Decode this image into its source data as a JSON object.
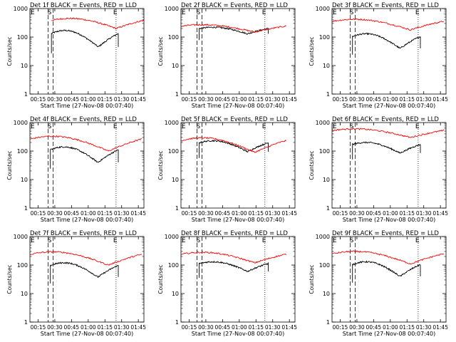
{
  "colors": {
    "events": "#000000",
    "lld": "#ff0000",
    "axis": "#000000"
  },
  "chart_data": [
    {
      "type": "line",
      "title": "Det 1f BLACK = Events, RED = LLD",
      "xlabel": "Start Time (27-Nov-08 00:07:40)",
      "ylabel": "Counts/sec",
      "yscale": "log",
      "ylim": [
        1,
        1000
      ],
      "y_ticks": [
        "1",
        "10",
        "100",
        "1000"
      ],
      "x_ticks": [
        "00:15",
        "00:30",
        "00:45",
        "01:00",
        "01:15",
        "01:30",
        "01:45"
      ],
      "markers": {
        "S": "00:26",
        "E": "01:25"
      },
      "series": [
        {
          "name": "Events",
          "color": "#000000",
          "start": "00:27",
          "end": "01:27",
          "min": 45,
          "max": 170
        },
        {
          "name": "LLD",
          "color": "#ff0000",
          "start": "00:27",
          "end": "01:50",
          "min": 200,
          "max": 450
        }
      ]
    },
    {
      "type": "line",
      "title": "Det 2f BLACK = Events, RED = LLD",
      "xlabel": "Start Time (27-Nov-08 00:07:40)",
      "ylabel": "Counts/sec",
      "yscale": "log",
      "ylim": [
        1,
        1000
      ],
      "y_ticks": [
        "1",
        "10",
        "100",
        "1000"
      ],
      "x_ticks": [
        "00:15",
        "00:30",
        "00:45",
        "01:00",
        "01:15",
        "01:30",
        "01:45"
      ],
      "markers": {
        "S": "00:24",
        "E": "01:23"
      },
      "series": [
        {
          "name": "Events",
          "color": "#000000",
          "start": "00:24",
          "end": "01:26",
          "min": 130,
          "max": 220
        },
        {
          "name": "LLD",
          "color": "#ff0000",
          "start": "00:08",
          "end": "01:42",
          "min": 150,
          "max": 270
        }
      ]
    },
    {
      "type": "line",
      "title": "Det 3f BLACK = Events, RED = LLD",
      "xlabel": "Start Time (27-Nov-08 00:07:40)",
      "ylabel": "Counts/sec",
      "yscale": "log",
      "ylim": [
        1,
        1000
      ],
      "y_ticks": [
        "1",
        "10",
        "100",
        "1000"
      ],
      "x_ticks": [
        "00:15",
        "00:30",
        "00:45",
        "01:00",
        "01:15",
        "01:30",
        "01:45"
      ],
      "markers": {
        "S": "00:26",
        "E": "01:25"
      },
      "series": [
        {
          "name": "Events",
          "color": "#000000",
          "start": "00:26",
          "end": "01:27",
          "min": 40,
          "max": 130
        },
        {
          "name": "LLD",
          "color": "#ff0000",
          "start": "00:08",
          "end": "01:48",
          "min": 180,
          "max": 420
        }
      ]
    },
    {
      "type": "line",
      "title": "Det 4f BLACK = Events, RED = LLD",
      "xlabel": "Start Time (27-Nov-08 00:07:40)",
      "ylabel": "Counts/sec",
      "yscale": "log",
      "ylim": [
        1,
        1000
      ],
      "y_ticks": [
        "1",
        "10",
        "100",
        "1000"
      ],
      "x_ticks": [
        "00:15",
        "00:30",
        "00:45",
        "01:00",
        "01:15",
        "01:30",
        "01:45"
      ],
      "markers": {
        "S": "00:26",
        "E": "01:25"
      },
      "series": [
        {
          "name": "Events",
          "color": "#000000",
          "start": "00:26",
          "end": "01:27",
          "min": 40,
          "max": 140
        },
        {
          "name": "LLD",
          "color": "#ff0000",
          "start": "00:08",
          "end": "01:48",
          "min": 100,
          "max": 330
        }
      ]
    },
    {
      "type": "line",
      "title": "Det 5f BLACK = Events, RED = LLD",
      "xlabel": "Start Time (27-Nov-08 00:07:40)",
      "ylabel": "Counts/sec",
      "yscale": "log",
      "ylim": [
        1,
        1000
      ],
      "y_ticks": [
        "1",
        "10",
        "100",
        "1000"
      ],
      "x_ticks": [
        "00:15",
        "00:30",
        "00:45",
        "01:00",
        "01:15",
        "01:30",
        "01:45"
      ],
      "markers": {
        "S": "00:24",
        "E": "01:23"
      },
      "series": [
        {
          "name": "Events",
          "color": "#000000",
          "start": "00:24",
          "end": "01:26",
          "min": 95,
          "max": 230
        },
        {
          "name": "LLD",
          "color": "#ff0000",
          "start": "00:08",
          "end": "01:42",
          "min": 90,
          "max": 290
        }
      ]
    },
    {
      "type": "line",
      "title": "Det 6f BLACK = Events, RED = LLD",
      "xlabel": "Start Time (27-Nov-08 00:07:40)",
      "ylabel": "Counts/sec",
      "yscale": "log",
      "ylim": [
        1,
        1000
      ],
      "y_ticks": [
        "1",
        "10",
        "100",
        "1000"
      ],
      "x_ticks": [
        "00:15",
        "00:30",
        "00:45",
        "01:00",
        "01:15",
        "01:30",
        "01:45"
      ],
      "markers": {
        "S": "00:26",
        "E": "01:25"
      },
      "series": [
        {
          "name": "Events",
          "color": "#000000",
          "start": "00:26",
          "end": "01:27",
          "min": 85,
          "max": 200
        },
        {
          "name": "LLD",
          "color": "#ff0000",
          "start": "00:08",
          "end": "01:48",
          "min": 300,
          "max": 600
        }
      ]
    },
    {
      "type": "line",
      "title": "Det 7f BLACK = Events, RED = LLD",
      "xlabel": "Start Time (27-Nov-08 00:07:40)",
      "ylabel": "Counts/sec",
      "yscale": "log",
      "ylim": [
        1,
        1000
      ],
      "y_ticks": [
        "1",
        "10",
        "100",
        "1000"
      ],
      "x_ticks": [
        "00:15",
        "00:30",
        "00:45",
        "01:00",
        "01:15",
        "01:30",
        "01:45"
      ],
      "markers": {
        "S": "00:26",
        "E": "01:25"
      },
      "series": [
        {
          "name": "Events",
          "color": "#000000",
          "start": "00:26",
          "end": "01:27",
          "min": 38,
          "max": 120
        },
        {
          "name": "LLD",
          "color": "#ff0000",
          "start": "00:08",
          "end": "01:48",
          "min": 100,
          "max": 290
        }
      ]
    },
    {
      "type": "line",
      "title": "Det 8f BLACK = Events, RED = LLD",
      "xlabel": "Start Time (27-Nov-08 00:07:40)",
      "ylabel": "Counts/sec",
      "yscale": "log",
      "ylim": [
        1,
        1000
      ],
      "y_ticks": [
        "1",
        "10",
        "100",
        "1000"
      ],
      "x_ticks": [
        "00:15",
        "00:30",
        "00:45",
        "01:00",
        "01:15",
        "01:30",
        "01:45"
      ],
      "markers": {
        "S": "00:24",
        "E": "01:23"
      },
      "series": [
        {
          "name": "Events",
          "color": "#000000",
          "start": "00:24",
          "end": "01:26",
          "min": 60,
          "max": 130
        },
        {
          "name": "LLD",
          "color": "#ff0000",
          "start": "00:08",
          "end": "01:42",
          "min": 120,
          "max": 280
        }
      ]
    },
    {
      "type": "line",
      "title": "Det 9f BLACK = Events, RED = LLD",
      "xlabel": "Start Time (27-Nov-08 00:07:40)",
      "ylabel": "Counts/sec",
      "yscale": "log",
      "ylim": [
        1,
        1000
      ],
      "y_ticks": [
        "1",
        "10",
        "100",
        "1000"
      ],
      "x_ticks": [
        "00:15",
        "00:30",
        "00:45",
        "01:00",
        "01:15",
        "01:30",
        "01:45"
      ],
      "markers": {
        "S": "00:26",
        "E": "01:25"
      },
      "series": [
        {
          "name": "Events",
          "color": "#000000",
          "start": "00:26",
          "end": "01:27",
          "min": 40,
          "max": 130
        },
        {
          "name": "LLD",
          "color": "#ff0000",
          "start": "00:08",
          "end": "01:48",
          "min": 110,
          "max": 300
        }
      ]
    }
  ]
}
